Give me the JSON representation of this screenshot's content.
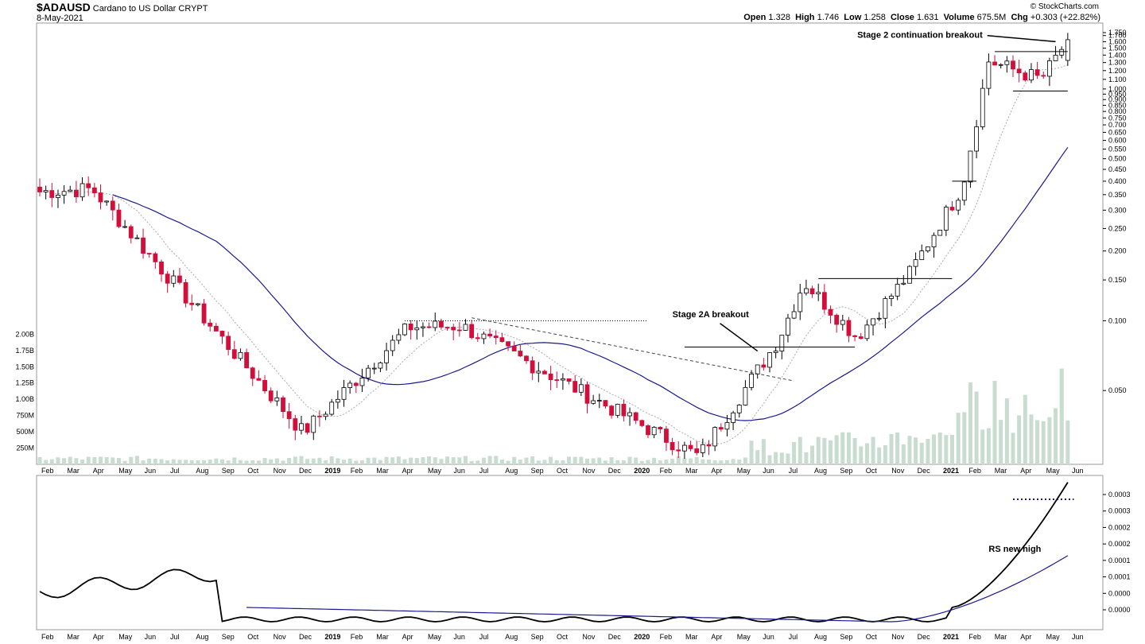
{
  "header": {
    "symbol": "$ADAUSD",
    "name": "Cardano to US Dollar",
    "exchange": "CRYPT",
    "date": "8-May-2021",
    "copyright": "© StockCharts.com",
    "open_label": "Open",
    "open": "1.328",
    "high_label": "High",
    "high": "1.746",
    "low_label": "Low",
    "low": "1.258",
    "close_label": "Close",
    "close": "1.631",
    "volume_label": "Volume",
    "volume": "675.5M",
    "chg_label": "Chg",
    "chg": "+0.303 (+22.82%)"
  },
  "colors": {
    "up": "#000000",
    "down": "#d0103a",
    "ma_fast": "#aaaaaa",
    "ma_slow": "#1a1a8c",
    "volume": "#c8dcd0",
    "rs_line": "#000000",
    "rs_ma": "#1a1a8c"
  },
  "chart_data": [
    {
      "type": "candlestick",
      "scale": "log",
      "ylim": [
        0.026,
        1.85
      ],
      "yticks": [
        "0.050",
        "0.100",
        "0.150",
        "0.200",
        "0.250",
        "0.300",
        "0.350",
        "0.400",
        "0.450",
        "0.500",
        "0.550",
        "0.600",
        "0.650",
        "0.700",
        "0.750",
        "0.800",
        "0.850",
        "0.900",
        "0.950",
        "1.000",
        "1.100",
        "1.200",
        "1.300",
        "1.400",
        "1.500",
        "1.600",
        "1.700",
        "1.750"
      ],
      "volume_ticks": [
        "250M",
        "500M",
        "750M",
        "1.00B",
        "1.25B",
        "1.50B",
        "1.75B",
        "2.00B"
      ],
      "x_labels": [
        "Feb",
        "Mar",
        "Apr",
        "May",
        "Jun",
        "Jul",
        "Aug",
        "Sep",
        "Oct",
        "Nov",
        "Dec",
        "2019",
        "Feb",
        "Mar",
        "Apr",
        "May",
        "Jun",
        "Jul",
        "Aug",
        "Sep",
        "Oct",
        "Nov",
        "Dec",
        "2020",
        "Feb",
        "Mar",
        "Apr",
        "May",
        "Jun",
        "Jul",
        "Aug",
        "Sep",
        "Oct",
        "Nov",
        "Dec",
        "2021",
        "Feb",
        "Mar",
        "Apr",
        "May",
        "Jun"
      ],
      "x_bold": [
        "2019",
        "2020",
        "2021"
      ],
      "annotations": [
        "Stage 2A breakout",
        "Stage 2 continuation breakout"
      ],
      "key_points": [
        {
          "date": "2018-02",
          "close": 0.36
        },
        {
          "date": "2018-04",
          "close": 0.37
        },
        {
          "date": "2018-12",
          "close": 0.033
        },
        {
          "date": "2019-04",
          "close": 0.094
        },
        {
          "date": "2019-06",
          "close": 0.095
        },
        {
          "date": "2020-03",
          "close": 0.026
        },
        {
          "date": "2020-06",
          "close": 0.082
        },
        {
          "date": "2020-07",
          "close": 0.147
        },
        {
          "date": "2020-09",
          "close": 0.085
        },
        {
          "date": "2020-11",
          "close": 0.16
        },
        {
          "date": "2021-01",
          "close": 0.38
        },
        {
          "date": "2021-02",
          "close": 1.32
        },
        {
          "date": "2021-04",
          "close": 1.1
        },
        {
          "date": "2021-05",
          "close": 1.631
        }
      ]
    },
    {
      "type": "line",
      "name": "RS",
      "yticks": [
        "0.0000",
        "0.0000",
        "0.0001",
        "0.0001",
        "0.0002",
        "0.0002",
        "0.0003",
        "0.0003"
      ],
      "x_labels": [
        "Feb",
        "Mar",
        "Apr",
        "May",
        "Jun",
        "Jul",
        "Aug",
        "Sep",
        "Oct",
        "Nov",
        "Dec",
        "2019",
        "Feb",
        "Mar",
        "Apr",
        "May",
        "Jun",
        "Jul",
        "Aug",
        "Sep",
        "Oct",
        "Nov",
        "Dec",
        "2020",
        "Feb",
        "Mar",
        "Apr",
        "May",
        "Jun",
        "Jul",
        "Aug",
        "Sep",
        "Oct",
        "Nov",
        "Dec",
        "2021",
        "Feb",
        "Mar",
        "Apr",
        "May",
        "Jun"
      ],
      "annotation": "RS new high"
    }
  ]
}
